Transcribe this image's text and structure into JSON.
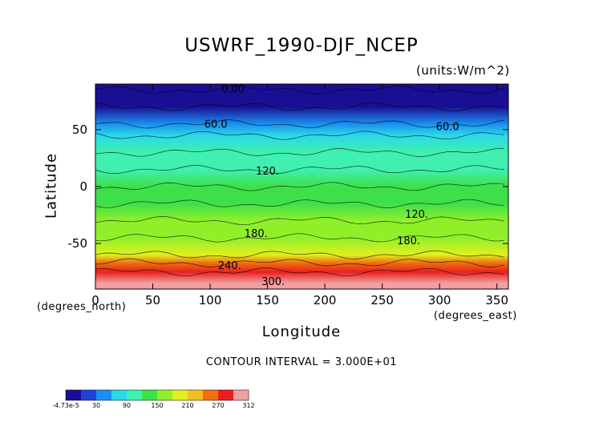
{
  "chart_data": {
    "type": "heatmap",
    "title": "USWRF_1990-DJF_NCEP",
    "units": "(units:W/m^2)",
    "xlabel": "Longitude",
    "ylabel": "Latitude",
    "x_unit": "(degrees_east)",
    "y_unit": "(degrees_north)",
    "xlim": [
      0,
      360
    ],
    "ylim": [
      -90,
      90
    ],
    "x_ticks": [
      "0",
      "50",
      "100",
      "150",
      "200",
      "250",
      "300",
      "350"
    ],
    "y_ticks": [
      "50",
      "0",
      "-50"
    ],
    "contour_interval": "CONTOUR INTERVAL = 3.000E+01",
    "contour_labels": [
      {
        "text": "0.00",
        "lon": 120,
        "lat": 85
      },
      {
        "text": "60.0",
        "lon": 105,
        "lat": 54
      },
      {
        "text": "60.0",
        "lon": 307,
        "lat": 52
      },
      {
        "text": "120.",
        "lon": 150,
        "lat": 13
      },
      {
        "text": "180.",
        "lon": 140,
        "lat": -42
      },
      {
        "text": "180.",
        "lon": 273,
        "lat": -48
      },
      {
        "text": "240.",
        "lon": 117,
        "lat": -70
      },
      {
        "text": "300.",
        "lon": 155,
        "lat": -84
      },
      {
        "text": "120.",
        "lon": 280,
        "lat": -25
      }
    ],
    "latitude_profile": [
      {
        "lat": 90,
        "value": 0
      },
      {
        "lat": 85,
        "value": 10
      },
      {
        "lat": 70,
        "value": 20
      },
      {
        "lat": 55,
        "value": 60
      },
      {
        "lat": 45,
        "value": 90
      },
      {
        "lat": 30,
        "value": 110
      },
      {
        "lat": 15,
        "value": 120
      },
      {
        "lat": 0,
        "value": 140
      },
      {
        "lat": -15,
        "value": 150
      },
      {
        "lat": -30,
        "value": 160
      },
      {
        "lat": -45,
        "value": 180
      },
      {
        "lat": -60,
        "value": 200
      },
      {
        "lat": -67,
        "value": 240
      },
      {
        "lat": -75,
        "value": 280
      },
      {
        "lat": -85,
        "value": 312
      }
    ],
    "colorbar": {
      "labels": [
        "-4.73e-5",
        "30",
        "90",
        "150",
        "210",
        "270",
        "312"
      ],
      "colors": [
        "#1a0f94",
        "#2340d8",
        "#1a8ff0",
        "#2ad8e8",
        "#3ff0b0",
        "#3ee04a",
        "#8ff02a",
        "#e0f020",
        "#f0c020",
        "#f07010",
        "#e82020",
        "#f0a0a0"
      ]
    }
  }
}
